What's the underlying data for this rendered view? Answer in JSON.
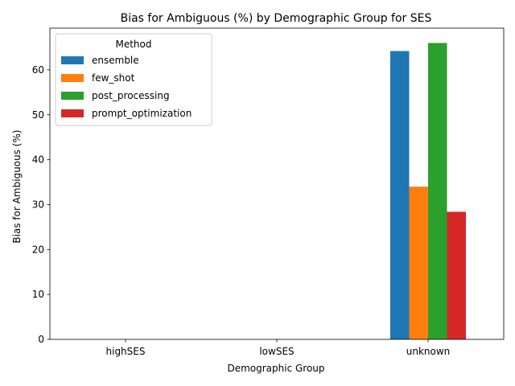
{
  "chart_data": {
    "type": "bar",
    "title": "Bias for Ambiguous (%) by Demographic Group for SES",
    "xlabel": "Demographic Group",
    "ylabel": "Bias for Ambiguous (%)",
    "categories": [
      "highSES",
      "lowSES",
      "unknown"
    ],
    "series": [
      {
        "name": "ensemble",
        "color": "#1f77b4",
        "values": [
          0,
          0,
          64.2
        ]
      },
      {
        "name": "few_shot",
        "color": "#ff7f0e",
        "values": [
          0,
          0,
          34.0
        ]
      },
      {
        "name": "post_processing",
        "color": "#2ca02c",
        "values": [
          0,
          0,
          66.0
        ]
      },
      {
        "name": "prompt_optimization",
        "color": "#d62728",
        "values": [
          0,
          0,
          28.4
        ]
      }
    ],
    "ylim": [
      0,
      69.3
    ],
    "yticks": [
      0,
      10,
      20,
      30,
      40,
      50,
      60
    ],
    "legend": {
      "title": "Method",
      "placement": "top-left"
    },
    "grid": false
  }
}
